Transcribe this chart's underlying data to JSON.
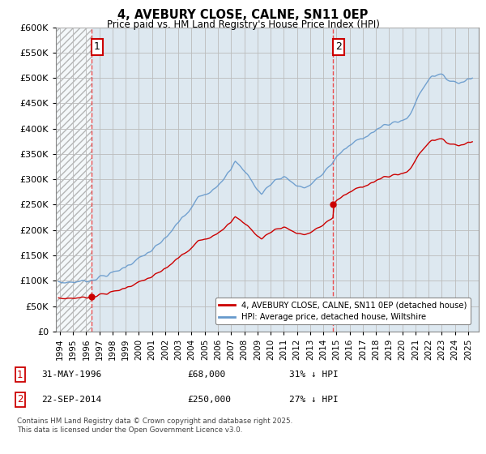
{
  "title": "4, AVEBURY CLOSE, CALNE, SN11 0EP",
  "subtitle": "Price paid vs. HM Land Registry's House Price Index (HPI)",
  "purchase1_year": 1996.42,
  "purchase1_price": 68000,
  "purchase2_year": 2014.75,
  "purchase2_price": 250000,
  "legend_label_red": "4, AVEBURY CLOSE, CALNE, SN11 0EP (detached house)",
  "legend_label_blue": "HPI: Average price, detached house, Wiltshire",
  "annotation1": "31-MAY-1996",
  "annotation1_price": "£68,000",
  "annotation1_pct": "31% ↓ HPI",
  "annotation2": "22-SEP-2014",
  "annotation2_price": "£250,000",
  "annotation2_pct": "27% ↓ HPI",
  "footer": "Contains HM Land Registry data © Crown copyright and database right 2025.\nThis data is licensed under the Open Government Licence v3.0.",
  "red_color": "#cc0000",
  "blue_color": "#6699cc",
  "vline_color": "#ee3333",
  "grid_color": "#bbbbbb",
  "plot_bg": "#dde8f0",
  "hatch_bg": "#ffffff",
  "ylim": [
    0,
    600000
  ],
  "yticks": [
    0,
    50000,
    100000,
    150000,
    200000,
    250000,
    300000,
    350000,
    400000,
    450000,
    500000,
    550000,
    600000
  ],
  "xlim_start": 1993.7,
  "xlim_end": 2025.8,
  "xticks": [
    1994,
    1995,
    1996,
    1997,
    1998,
    1999,
    2000,
    2001,
    2002,
    2003,
    2004,
    2005,
    2006,
    2007,
    2008,
    2009,
    2010,
    2011,
    2012,
    2013,
    2014,
    2015,
    2016,
    2017,
    2018,
    2019,
    2020,
    2021,
    2022,
    2023,
    2024,
    2025
  ]
}
